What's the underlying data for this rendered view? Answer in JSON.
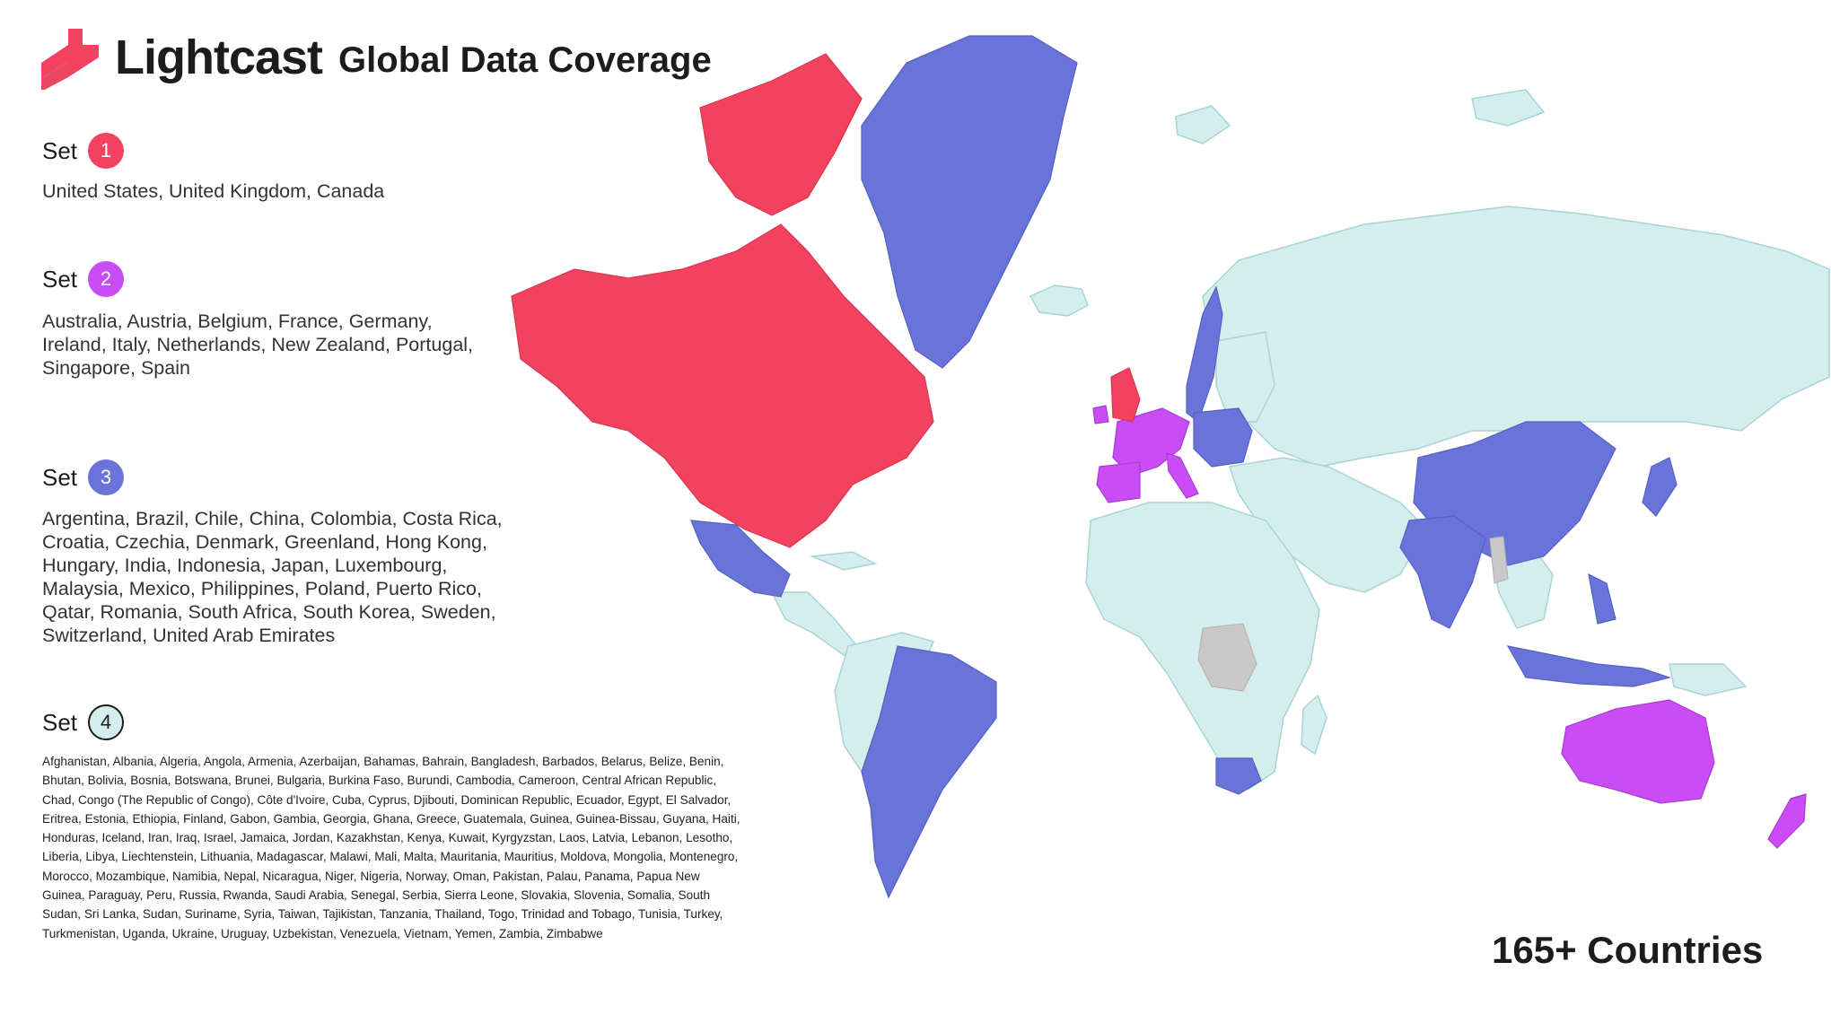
{
  "header": {
    "brand": "Lightcast",
    "title": "Global Data Coverage",
    "icon": "lightcast-logo-mark"
  },
  "colors": {
    "set1": "#f2425f",
    "set2": "#c94cf4",
    "set3": "#6a74d8",
    "set4": "#d4eeee",
    "no_data": "#c8c8c8"
  },
  "sets": [
    {
      "label": "Set",
      "number": "1",
      "countries": "United States, United Kingdom, Canada"
    },
    {
      "label": "Set",
      "number": "2",
      "countries": "Australia, Austria, Belgium, France, Germany, Ireland, Italy, Netherlands, New Zealand, Portugal, Singapore, Spain"
    },
    {
      "label": "Set",
      "number": "3",
      "countries": "Argentina, Brazil, Chile, China, Colombia, Costa Rica, Croatia, Czechia, Denmark, Greenland, Hong Kong, Hungary, India, Indonesia, Japan, Luxembourg, Malaysia, Mexico, Philippines, Poland, Puerto Rico, Qatar, Romania, South Africa, South Korea, Sweden, Switzerland, United Arab Emirates"
    },
    {
      "label": "Set",
      "number": "4",
      "countries": "Afghanistan, Albania, Algeria, Angola, Armenia, Azerbaijan, Bahamas, Bahrain, Bangladesh, Barbados, Belarus, Belize, Benin, Bhutan, Bolivia, Bosnia, Botswana, Brunei, Bulgaria, Burkina Faso, Burundi, Cambodia, Cameroon, Central African Republic, Chad, Congo (The Republic of Congo), Côte d'Ivoire, Cuba, Cyprus, Djibouti, Dominican Republic, Ecuador, Egypt, El Salvador, Eritrea, Estonia, Ethiopia, Finland, Gabon, Gambia, Georgia, Ghana, Greece, Guatemala, Guinea, Guinea-Bissau, Guyana, Haiti, Honduras, Iceland, Iran, Iraq, Israel, Jamaica, Jordan, Kazakhstan, Kenya, Kuwait, Kyrgyzstan, Laos, Latvia, Lebanon, Lesotho, Liberia, Libya, Liechtenstein, Lithuania, Madagascar, Malawi, Mali, Malta, Mauritania, Mauritius, Moldova, Mongolia, Montenegro, Morocco, Mozambique, Namibia, Nepal, Nicaragua, Niger, Nigeria, Norway, Oman, Pakistan, Palau, Panama, Papua New Guinea, Paraguay, Peru, Russia, Rwanda, Saudi Arabia, Senegal, Serbia, Sierra Leone, Slovakia, Slovenia, Somalia, South Sudan, Sri Lanka, Sudan, Suriname, Syria, Taiwan, Tajikistan, Tanzania, Thailand, Togo, Trinidad and Tobago, Tunisia, Turkey, Turkmenistan, Uganda, Ukraine, Uruguay, Uzbekistan, Venezuela, Vietnam, Yemen, Zambia, Zimbabwe"
    }
  ],
  "footer": {
    "countries_label": "165+ Countries"
  }
}
